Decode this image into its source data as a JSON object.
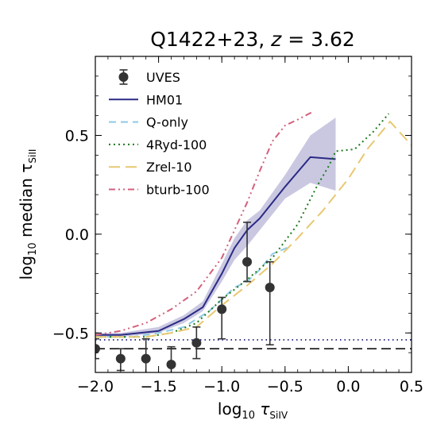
{
  "chart_data": {
    "type": "line",
    "title": "Q1422+23, z = 3.62",
    "title_main": "Q1422+23, ",
    "title_z": "z",
    "title_eq": " = 3.62",
    "xlabel": "log10 τSiIV",
    "xlabel_main": "log",
    "xlabel_sub": "10",
    "xlabel_tau": " τ",
    "xlabel_ion": "SiIV",
    "ylabel": "log10 median τSiII",
    "ylabel_main": "log",
    "ylabel_sub": "10",
    "ylabel_rest": " median τ",
    "ylabel_ion": "SiII",
    "xlim": [
      -2.0,
      0.5
    ],
    "ylim": [
      -0.7,
      0.9
    ],
    "xticks": [
      -2.0,
      -1.5,
      -1.0,
      -0.5,
      0.0,
      0.5
    ],
    "xtick_labels": [
      "−2.0",
      "−1.5",
      "−1.0",
      "−0.5",
      "0.0",
      "0.5"
    ],
    "yticks": [
      -0.5,
      0.0,
      0.5
    ],
    "ytick_labels": [
      "−0.5",
      "0.0",
      "0.5"
    ],
    "grid": false,
    "legend_position": "top-left",
    "series": [
      {
        "name": "UVES",
        "kind": "errorbar",
        "color": "#333333",
        "x": [
          -2.0,
          -1.8,
          -1.6,
          -1.4,
          -1.2,
          -1.0,
          -0.8,
          -0.62
        ],
        "y": [
          -0.58,
          -0.63,
          -0.63,
          -0.66,
          -0.55,
          -0.38,
          -0.14,
          -0.27
        ],
        "yerr_lo": [
          0.05,
          0.06,
          0.09,
          0.1,
          0.08,
          0.15,
          0.1,
          0.29
        ],
        "yerr_hi": [
          0.05,
          0.05,
          0.1,
          0.09,
          0.08,
          0.06,
          0.2,
          0.13
        ]
      },
      {
        "name": "HM01",
        "kind": "line",
        "color": "#2b2a85",
        "dash": "solid",
        "x": [
          -2.0,
          -1.8,
          -1.5,
          -1.3,
          -1.15,
          -1.0,
          -0.9,
          -0.8,
          -0.7,
          -0.5,
          -0.3,
          -0.1
        ],
        "y": [
          -0.51,
          -0.51,
          -0.49,
          -0.43,
          -0.37,
          -0.2,
          -0.07,
          0.02,
          0.08,
          0.24,
          0.39,
          0.38
        ],
        "band_lo": [
          -0.52,
          -0.52,
          -0.5,
          -0.45,
          -0.39,
          -0.24,
          -0.13,
          -0.06,
          0.02,
          0.18,
          0.26,
          0.22
        ],
        "band_hi": [
          -0.5,
          -0.5,
          -0.47,
          -0.41,
          -0.34,
          -0.15,
          -0.02,
          0.07,
          0.12,
          0.3,
          0.5,
          0.59
        ],
        "band_color": "#9e9ac8"
      },
      {
        "name": "Q-only",
        "kind": "line",
        "color": "#8ecae6",
        "dash": "9,6",
        "x": [
          -2.0,
          -1.7,
          -1.5,
          -1.3,
          -1.1,
          -0.9,
          -0.8,
          -0.7,
          -0.6,
          -0.45
        ],
        "y": [
          -0.52,
          -0.52,
          -0.5,
          -0.47,
          -0.39,
          -0.27,
          -0.24,
          -0.18,
          -0.1,
          -0.06
        ]
      },
      {
        "name": "4Ryd-100",
        "kind": "line",
        "color": "#1a7a1a",
        "dash": "2,4",
        "x": [
          -2.0,
          -1.8,
          -1.6,
          -1.4,
          -1.2,
          -1.0,
          -0.8,
          -0.6,
          -0.4,
          -0.25,
          -0.15,
          -0.1,
          0.05,
          0.2,
          0.32
        ],
        "y": [
          -0.52,
          -0.52,
          -0.52,
          -0.5,
          -0.45,
          -0.33,
          -0.23,
          -0.12,
          0.05,
          0.24,
          0.35,
          0.42,
          0.43,
          0.52,
          0.61
        ]
      },
      {
        "name": "Zrel-10",
        "kind": "line",
        "color": "#e8c872",
        "dash": "14,7",
        "x": [
          -2.0,
          -1.8,
          -1.6,
          -1.4,
          -1.2,
          -1.0,
          -0.8,
          -0.6,
          -0.4,
          -0.2,
          0.0,
          0.15,
          0.33,
          0.5
        ],
        "y": [
          -0.52,
          -0.52,
          -0.52,
          -0.5,
          -0.47,
          -0.36,
          -0.26,
          -0.15,
          -0.02,
          0.12,
          0.28,
          0.43,
          0.57,
          0.45
        ]
      },
      {
        "name": "bturb-100",
        "kind": "line",
        "color": "#d4607c",
        "dash": "8,4,2,4,2,4",
        "x": [
          -2.0,
          -1.8,
          -1.6,
          -1.4,
          -1.2,
          -1.0,
          -0.9,
          -0.8,
          -0.7,
          -0.6,
          -0.5,
          -0.4,
          -0.28
        ],
        "y": [
          -0.51,
          -0.49,
          -0.45,
          -0.38,
          -0.29,
          -0.12,
          0.02,
          0.16,
          0.32,
          0.47,
          0.55,
          0.58,
          0.62
        ]
      }
    ],
    "reference_lines": [
      {
        "kind": "dotted",
        "y": -0.535,
        "color": "#2b2a85"
      },
      {
        "kind": "dashed",
        "y": -0.58,
        "color": "#222222"
      }
    ]
  }
}
